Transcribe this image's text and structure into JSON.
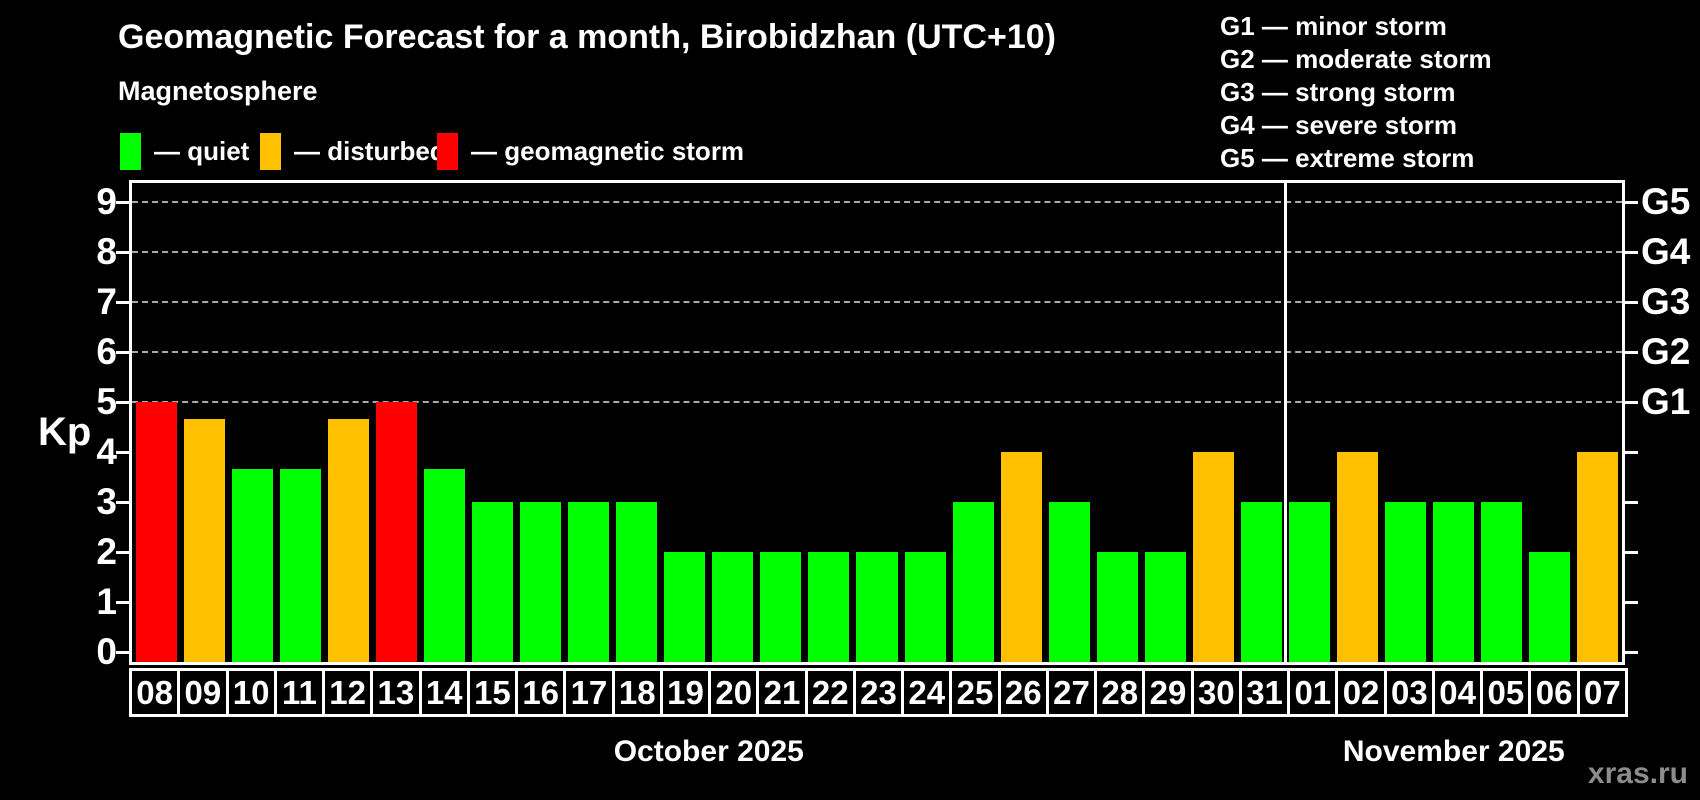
{
  "header": {
    "title": "Geomagnetic Forecast for a month, Birobidzhan (UTC+10)",
    "subtitle": "Magnetosphere",
    "watermark": "xras.ru"
  },
  "legend": {
    "items": [
      {
        "key": "quiet",
        "label": "— quiet",
        "color": "#00ff00"
      },
      {
        "key": "disturbed",
        "label": "— disturbed",
        "color": "#ffc000"
      },
      {
        "key": "storm",
        "label": "— geomagnetic storm",
        "color": "#ff0000"
      }
    ]
  },
  "storm_scale_legend": {
    "items": [
      "G1 — minor storm",
      "G2 — moderate storm",
      "G3 — strong storm",
      "G4 — severe storm",
      "G5 — extreme storm"
    ]
  },
  "chart_data": {
    "type": "bar",
    "ylabel": "Kp",
    "ylim": [
      0,
      9.4
    ],
    "yticks": [
      0,
      1,
      2,
      3,
      4,
      5,
      6,
      7,
      8,
      9
    ],
    "grid_kp_levels": [
      5,
      6,
      7,
      8,
      9
    ],
    "right_axis_labels": [
      {
        "kp": 5,
        "label": "G1"
      },
      {
        "kp": 6,
        "label": "G2"
      },
      {
        "kp": 7,
        "label": "G3"
      },
      {
        "kp": 8,
        "label": "G4"
      },
      {
        "kp": 9,
        "label": "G5"
      }
    ],
    "status_colors": {
      "quiet": "#00ff00",
      "disturbed": "#ffc000",
      "storm": "#ff0000"
    },
    "months": [
      {
        "label": "October 2025",
        "days": 24
      },
      {
        "label": "November 2025",
        "days": 7
      }
    ],
    "bars": [
      {
        "date": "08",
        "kp": 5.0,
        "status": "storm"
      },
      {
        "date": "09",
        "kp": 4.67,
        "status": "disturbed"
      },
      {
        "date": "10",
        "kp": 3.67,
        "status": "quiet"
      },
      {
        "date": "11",
        "kp": 3.67,
        "status": "quiet"
      },
      {
        "date": "12",
        "kp": 4.67,
        "status": "disturbed"
      },
      {
        "date": "13",
        "kp": 5.0,
        "status": "storm"
      },
      {
        "date": "14",
        "kp": 3.67,
        "status": "quiet"
      },
      {
        "date": "15",
        "kp": 3.0,
        "status": "quiet"
      },
      {
        "date": "16",
        "kp": 3.0,
        "status": "quiet"
      },
      {
        "date": "17",
        "kp": 3.0,
        "status": "quiet"
      },
      {
        "date": "18",
        "kp": 3.0,
        "status": "quiet"
      },
      {
        "date": "19",
        "kp": 2.0,
        "status": "quiet"
      },
      {
        "date": "20",
        "kp": 2.0,
        "status": "quiet"
      },
      {
        "date": "21",
        "kp": 2.0,
        "status": "quiet"
      },
      {
        "date": "22",
        "kp": 2.0,
        "status": "quiet"
      },
      {
        "date": "23",
        "kp": 2.0,
        "status": "quiet"
      },
      {
        "date": "24",
        "kp": 2.0,
        "status": "quiet"
      },
      {
        "date": "25",
        "kp": 3.0,
        "status": "quiet"
      },
      {
        "date": "26",
        "kp": 4.0,
        "status": "disturbed"
      },
      {
        "date": "27",
        "kp": 3.0,
        "status": "quiet"
      },
      {
        "date": "28",
        "kp": 2.0,
        "status": "quiet"
      },
      {
        "date": "29",
        "kp": 2.0,
        "status": "quiet"
      },
      {
        "date": "30",
        "kp": 4.0,
        "status": "disturbed"
      },
      {
        "date": "31",
        "kp": 3.0,
        "status": "quiet"
      },
      {
        "date": "01",
        "kp": 3.0,
        "status": "quiet"
      },
      {
        "date": "02",
        "kp": 4.0,
        "status": "disturbed"
      },
      {
        "date": "03",
        "kp": 3.0,
        "status": "quiet"
      },
      {
        "date": "04",
        "kp": 3.0,
        "status": "quiet"
      },
      {
        "date": "05",
        "kp": 3.0,
        "status": "quiet"
      },
      {
        "date": "06",
        "kp": 2.0,
        "status": "quiet"
      },
      {
        "date": "07",
        "kp": 4.0,
        "status": "disturbed"
      }
    ]
  }
}
